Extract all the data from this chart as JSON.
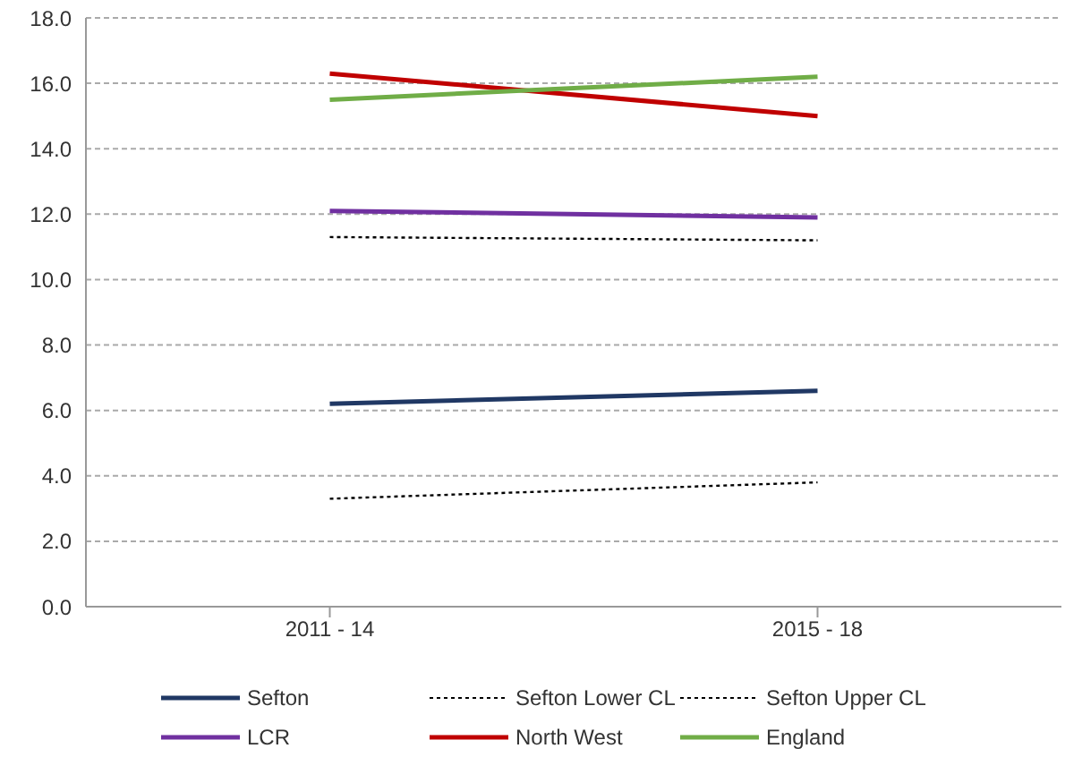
{
  "chart_data": {
    "type": "line",
    "categories": [
      "2011 - 14",
      "2015 - 18"
    ],
    "series": [
      {
        "name": "Sefton",
        "color": "#203864",
        "values": [
          6.2,
          6.6
        ]
      },
      {
        "name": "Sefton Lower CL",
        "color": "#000000",
        "values": [
          3.3,
          3.8
        ],
        "line_style": "dotted"
      },
      {
        "name": "Sefton Upper CL",
        "color": "#000000",
        "values": [
          11.3,
          11.2
        ],
        "line_style": "dotted"
      },
      {
        "name": "LCR",
        "color": "#7030a0",
        "values": [
          12.1,
          11.9
        ]
      },
      {
        "name": "North West",
        "color": "#c00000",
        "values": [
          16.3,
          15.0
        ]
      },
      {
        "name": "England",
        "color": "#70ad47",
        "values": [
          15.5,
          16.2
        ]
      }
    ],
    "ylim": [
      0,
      18
    ],
    "yticks": [
      {
        "value": 0,
        "label": "0.0"
      },
      {
        "value": 2,
        "label": "2.0"
      },
      {
        "value": 4,
        "label": "4.0"
      },
      {
        "value": 6,
        "label": "6.0"
      },
      {
        "value": 8,
        "label": "8.0"
      },
      {
        "value": 10,
        "label": "10.0"
      },
      {
        "value": 12,
        "label": "12.0"
      },
      {
        "value": 14,
        "label": "14.0"
      },
      {
        "value": 16,
        "label": "16.0"
      },
      {
        "value": 18,
        "label": "18.0"
      }
    ],
    "grid": "y",
    "legend": "bottom",
    "line_style": "solid",
    "marker": "none"
  }
}
